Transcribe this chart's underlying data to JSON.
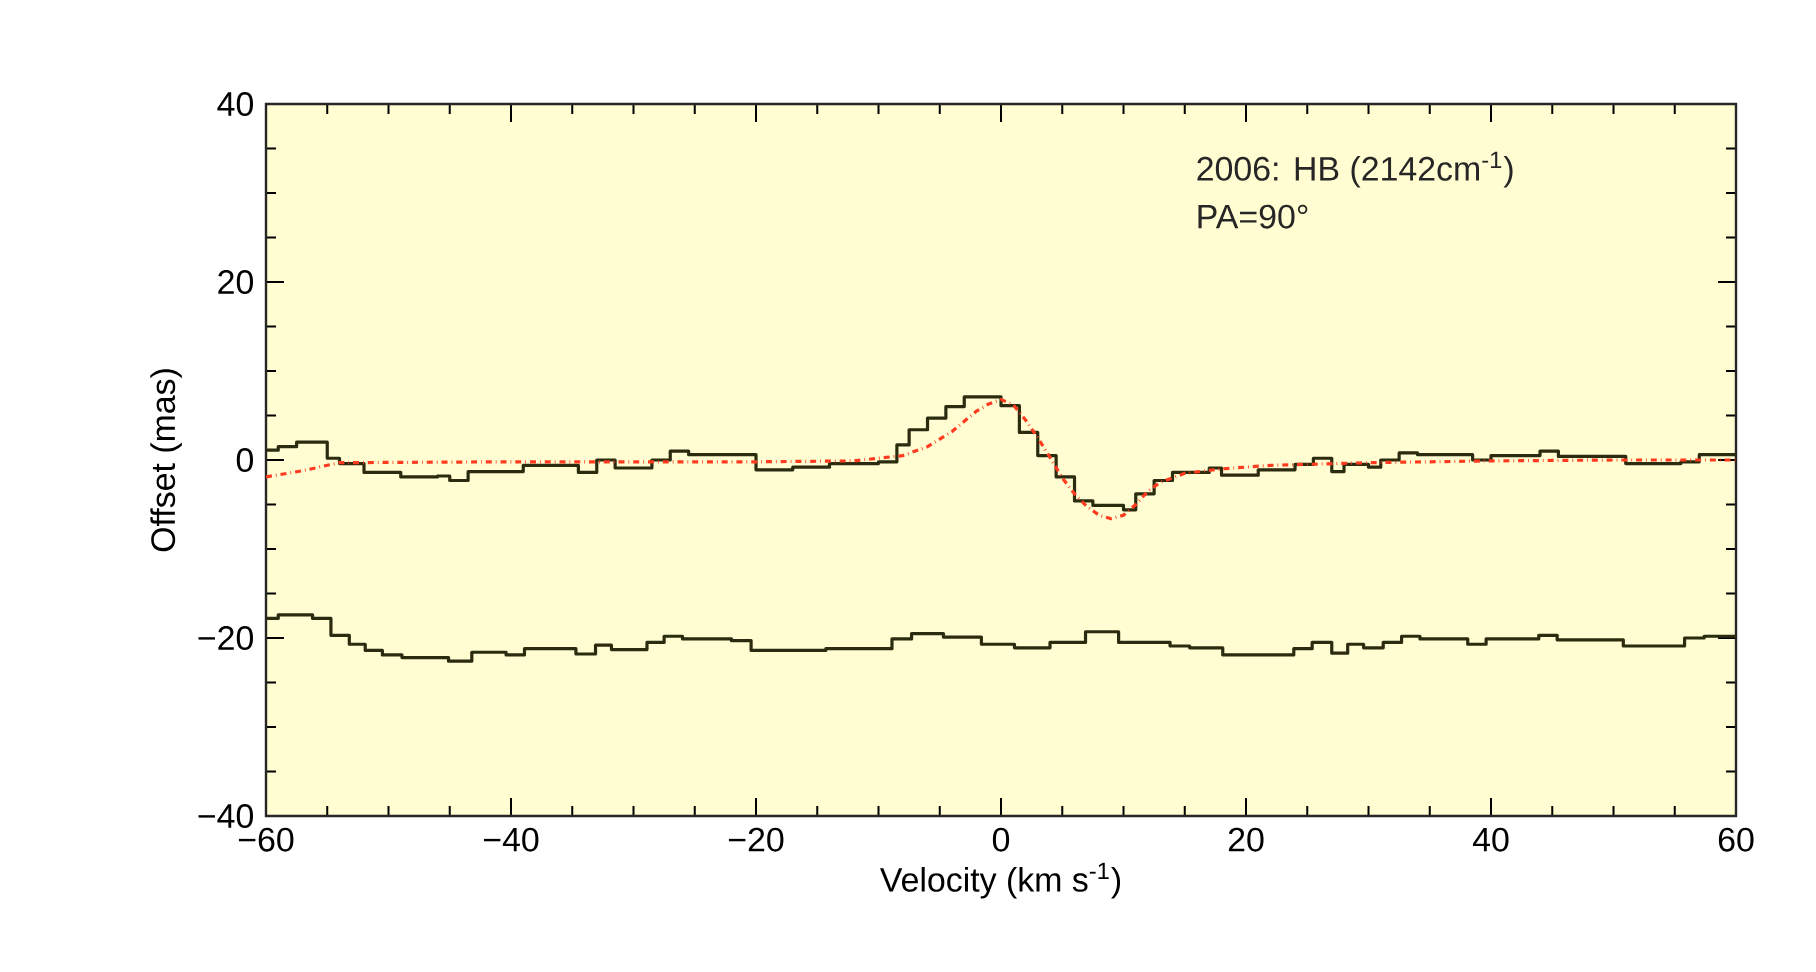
{
  "chart_data": {
    "type": "step",
    "xlabel": "Velocity (km s$^{-1}$)",
    "ylabel": "Offset (mas)",
    "annotations": [
      "2006: HB (2142cm$^{-1}$)",
      "PA=90°"
    ],
    "xlim": [
      -60,
      60
    ],
    "xticks": [
      {
        "value": -60,
        "label": "−60"
      },
      {
        "value": -40,
        "label": "−40"
      },
      {
        "value": -20,
        "label": "−20"
      },
      0,
      20,
      40,
      60
    ],
    "ylim": [
      -40,
      40
    ],
    "yticks": [
      {
        "value": -40,
        "label": "−40"
      },
      {
        "value": -20,
        "label": "−20"
      },
      0,
      20,
      40
    ],
    "grid": false,
    "marker": "none",
    "series": [
      {
        "color": "#2b2b10",
        "x": [
          -60,
          -59,
          -57.5,
          -55,
          -54,
          -52,
          -49,
          -46,
          -45,
          -43.5,
          -39,
          -34.5,
          -33,
          -31.5,
          -28.5,
          -27,
          -25.5,
          -20,
          -17,
          -14,
          -10,
          -8.5,
          -7.5,
          -6,
          -4.5,
          -3,
          0,
          1.5,
          3,
          4.5,
          6,
          7.5,
          10,
          11,
          12.5,
          14,
          17,
          18,
          21,
          24,
          25.5,
          27,
          28,
          30,
          31,
          32.5,
          34,
          38.5,
          40,
          44,
          45.5,
          51,
          55.5,
          57,
          60
        ],
        "values": [
          1.1,
          1.5,
          2.0,
          0.2,
          -0.4,
          -1.4,
          -1.9,
          -1.8,
          -2.3,
          -1.3,
          -0.6,
          -1.4,
          0,
          -0.9,
          0,
          1.0,
          0.6,
          -1.1,
          -0.8,
          -0.4,
          -0.2,
          1.7,
          3.4,
          4.7,
          6.0,
          7.1,
          6.1,
          3.1,
          0.5,
          -1.9,
          -4.6,
          -5.1,
          -5.6,
          -3.8,
          -2.3,
          -1.4,
          -0.9,
          -1.7,
          -1.1,
          -0.5,
          0.2,
          -1.3,
          -0.5,
          -0.8,
          0,
          0.8,
          0.6,
          0,
          0.5,
          1.0,
          0.4,
          -0.4,
          -0.2,
          0.6,
          0.6
        ]
      },
      {
        "color": "#2b2b10",
        "x": [
          -60,
          -59,
          -56.2,
          -54.7,
          -53.2,
          -51.9,
          -50.5,
          -48.9,
          -45.1,
          -43.2,
          -40.4,
          -38.9,
          -34.7,
          -33.1,
          -31.8,
          -28.9,
          -27.5,
          -26,
          -22,
          -20.4,
          -14.3,
          -8.9,
          -7.3,
          -4.7,
          -1.6,
          1.1,
          4.0,
          6.9,
          9.6,
          13.8,
          15.4,
          18.1,
          23.9,
          25.4,
          27,
          28.3,
          29.6,
          31.2,
          32.7,
          34.2,
          38.1,
          39.6,
          43.9,
          45.4,
          50.8,
          55.8,
          57.4,
          60
        ],
        "values": [
          -17.8,
          -17.4,
          -17.8,
          -19.7,
          -20.7,
          -21.4,
          -21.9,
          -22.2,
          -22.6,
          -21.6,
          -21.9,
          -21.2,
          -21.8,
          -20.8,
          -21.3,
          -20.5,
          -19.8,
          -20.1,
          -20.3,
          -21.4,
          -21.2,
          -20.1,
          -19.5,
          -19.9,
          -20.7,
          -21.1,
          -20.5,
          -19.3,
          -20.5,
          -20.9,
          -21.1,
          -21.9,
          -21.2,
          -20.5,
          -21.7,
          -20.7,
          -21.1,
          -20.5,
          -19.8,
          -20.1,
          -20.7,
          -20.1,
          -19.7,
          -20.2,
          -20.9,
          -20,
          -19.8,
          -19.8
        ]
      },
      {
        "type": "line",
        "color": "#ff3b1f",
        "line_style": "dashdot",
        "x": [
          -60,
          -57,
          -54,
          -40,
          -20,
          -12,
          -8,
          -6,
          -4,
          -2,
          -1,
          0,
          1,
          2,
          3,
          4,
          5,
          6,
          7,
          8,
          9,
          10,
          11,
          12,
          13,
          15,
          18,
          22,
          30,
          40,
          50,
          60
        ],
        "values": [
          -1.9,
          -1.2,
          -0.3,
          -0.2,
          -0.2,
          -0.1,
          0.5,
          1.5,
          3.2,
          5.5,
          6.3,
          6.8,
          6.2,
          4.5,
          2.5,
          0.3,
          -2,
          -3.8,
          -5.2,
          -6.2,
          -6.6,
          -6.2,
          -5,
          -3.5,
          -2.5,
          -1.5,
          -1,
          -0.6,
          -0.3,
          -0.1,
          0,
          0
        ]
      }
    ]
  }
}
